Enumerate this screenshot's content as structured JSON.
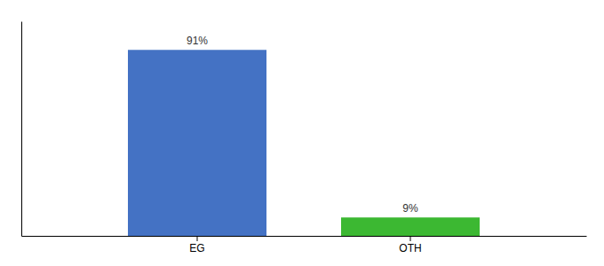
{
  "chart_data": {
    "type": "bar",
    "categories": [
      "EG",
      "OTH"
    ],
    "values": [
      91,
      9
    ],
    "value_labels": [
      "91%",
      "9%"
    ],
    "colors": [
      "#4472c4",
      "#3cb832"
    ],
    "ylim": [
      0,
      105
    ],
    "data_labels": true,
    "tick_labels": "x",
    "grid": false
  }
}
